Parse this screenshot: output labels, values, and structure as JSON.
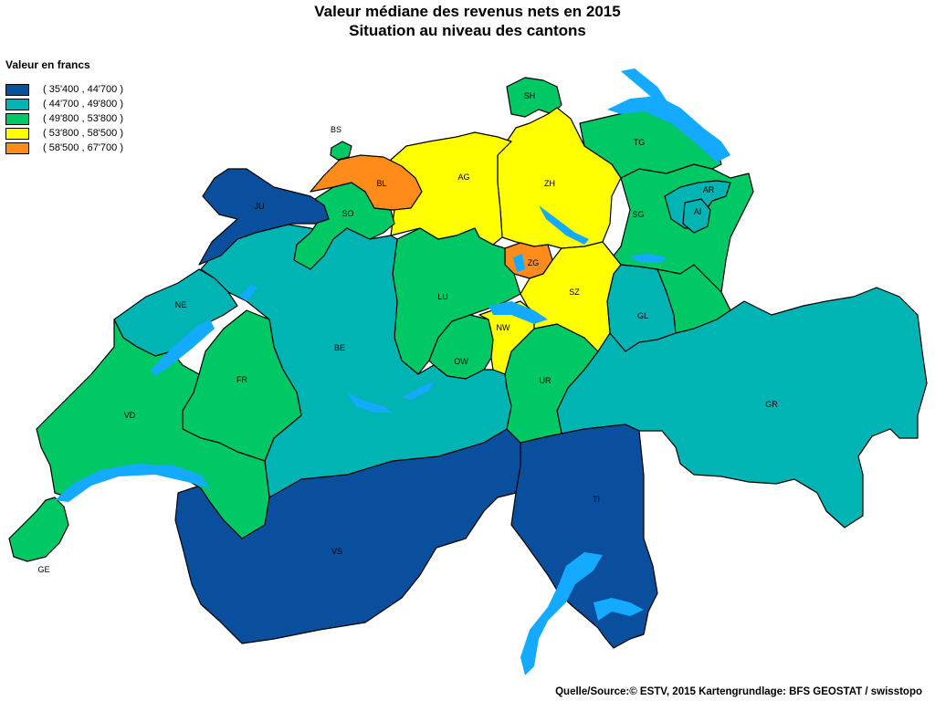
{
  "title": {
    "line1": "Valeur médiane des revenus nets en 2015",
    "line2": "Situation au niveau des cantons"
  },
  "legend": {
    "title": "Valeur en francs",
    "classes": [
      {
        "label": "( 35'400 , 44'700 )",
        "color": "#0a4f9e"
      },
      {
        "label": "( 44'700 , 49'800 )",
        "color": "#00b4b4"
      },
      {
        "label": "( 49'800 , 53'800 )",
        "color": "#00c864"
      },
      {
        "label": "( 53'800 , 58'500 )",
        "color": "#ffff00"
      },
      {
        "label": "( 58'500 , 67'700 )",
        "color": "#ff8c1a"
      }
    ]
  },
  "lake_color": "#14aaff",
  "cantons": [
    {
      "code": "GE",
      "class": 2
    },
    {
      "code": "VD",
      "class": 2
    },
    {
      "code": "VS",
      "class": 0
    },
    {
      "code": "NE",
      "class": 1
    },
    {
      "code": "JU",
      "class": 0
    },
    {
      "code": "FR",
      "class": 2
    },
    {
      "code": "BE",
      "class": 1
    },
    {
      "code": "SO",
      "class": 2
    },
    {
      "code": "BS",
      "class": 2
    },
    {
      "code": "BL",
      "class": 4
    },
    {
      "code": "AG",
      "class": 3
    },
    {
      "code": "LU",
      "class": 2
    },
    {
      "code": "OW",
      "class": 2
    },
    {
      "code": "NW",
      "class": 3
    },
    {
      "code": "ZG",
      "class": 4
    },
    {
      "code": "ZH",
      "class": 3
    },
    {
      "code": "SH",
      "class": 2
    },
    {
      "code": "TG",
      "class": 2
    },
    {
      "code": "SG",
      "class": 2
    },
    {
      "code": "AR",
      "class": 1
    },
    {
      "code": "AI",
      "class": 1
    },
    {
      "code": "GL",
      "class": 1
    },
    {
      "code": "SZ",
      "class": 3
    },
    {
      "code": "UR",
      "class": 2
    },
    {
      "code": "GR",
      "class": 1
    },
    {
      "code": "TI",
      "class": 0
    }
  ],
  "source": "Quelle/Source:© ESTV, 2015 Kartengrundlage: BFS GEOSTAT / swisstopo"
}
